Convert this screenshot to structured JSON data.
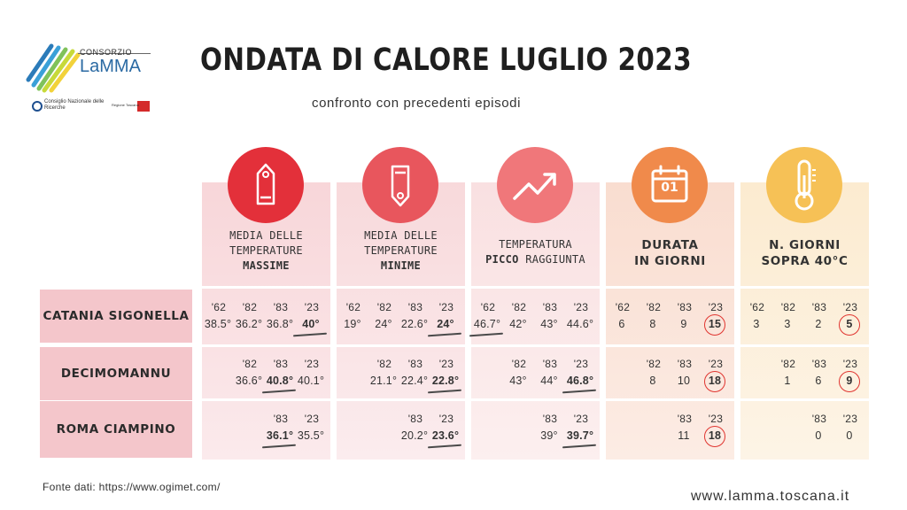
{
  "logo": {
    "consorzio": "CONSORZIO",
    "lamma": "LaMMA",
    "cnr": "Consiglio Nazionale delle Ricerche",
    "regione": "Regione Toscana"
  },
  "title": "ONDATA DI CALORE LUGLIO 2023",
  "subtitle": "confronto con precedenti episodi",
  "colors": {
    "col1": "#e3303a",
    "col2": "#e8565d",
    "col3": "#f0777a",
    "col4": "#f08a4b",
    "col5": "#f6c156",
    "label_bg": "#f4c6cb"
  },
  "columns": [
    {
      "icon": "tag-icon",
      "line1": "MEDIA DELLE",
      "line2": "TEMPERATURE",
      "line3": "MASSIME"
    },
    {
      "icon": "tag-icon",
      "line1": "MEDIA DELLE",
      "line2": "TEMPERATURE",
      "line3": "MINIME"
    },
    {
      "icon": "trend-up-icon",
      "line1": "TEMPERATURA",
      "line2a": "PICCO",
      "line2b": " RAGGIUNTA"
    },
    {
      "icon": "calendar-icon",
      "calendar_text": "01",
      "line1": "DURATA",
      "line2": "IN GIORNI"
    },
    {
      "icon": "thermometer-icon",
      "line1": "N. GIORNI",
      "line2": "SOPRA 40°C"
    }
  ],
  "rows": [
    {
      "label": "CATANIA SIGONELLA",
      "c1": {
        "years": [
          "'62",
          "'82",
          "'83",
          "'23"
        ],
        "vals": [
          "38.5°",
          "36.2°",
          "36.8°",
          "40°"
        ]
      },
      "c2": {
        "years": [
          "'62",
          "'82",
          "'83",
          "'23"
        ],
        "vals": [
          "19°",
          "24°",
          "22.6°",
          "24°"
        ]
      },
      "c3": {
        "years": [
          "'62",
          "'82",
          "'83",
          "'23"
        ],
        "vals": [
          "46.7°",
          "42°",
          "43°",
          "44.6°"
        ]
      },
      "c4": {
        "years": [
          "'62",
          "'82",
          "'83",
          "'23"
        ],
        "vals": [
          "6",
          "8",
          "9",
          "15"
        ]
      },
      "c5": {
        "years": [
          "'62",
          "'82",
          "'83",
          "'23"
        ],
        "vals": [
          "3",
          "3",
          "2",
          "5"
        ]
      }
    },
    {
      "label": "DECIMOMANNU",
      "c1": {
        "years": [
          "'82",
          "'83",
          "'23"
        ],
        "vals": [
          "36.6°",
          "40.8°",
          "40.1°"
        ]
      },
      "c2": {
        "years": [
          "'82",
          "'83",
          "'23"
        ],
        "vals": [
          "21.1°",
          "22.4°",
          "22.8°"
        ]
      },
      "c3": {
        "years": [
          "'82",
          "'83",
          "'23"
        ],
        "vals": [
          "43°",
          "44°",
          "46.8°"
        ]
      },
      "c4": {
        "years": [
          "'82",
          "'83",
          "'23"
        ],
        "vals": [
          "8",
          "10",
          "18"
        ]
      },
      "c5": {
        "years": [
          "'82",
          "'83",
          "'23"
        ],
        "vals": [
          "1",
          "6",
          "9"
        ]
      }
    },
    {
      "label": "ROMA CIAMPINO",
      "c1": {
        "years": [
          "'83",
          "'23"
        ],
        "vals": [
          "36.1°",
          "35.5°"
        ]
      },
      "c2": {
        "years": [
          "'83",
          "'23"
        ],
        "vals": [
          "20.2°",
          "23.6°"
        ]
      },
      "c3": {
        "years": [
          "'83",
          "'23"
        ],
        "vals": [
          "39°",
          "39.7°"
        ]
      },
      "c4": {
        "years": [
          "'83",
          "'23"
        ],
        "vals": [
          "11",
          "18"
        ]
      },
      "c5": {
        "years": [
          "'83",
          "'23"
        ],
        "vals": [
          "0",
          "0"
        ]
      }
    }
  ],
  "footer": {
    "source": "Fonte dati: https://www.ogimet.com/",
    "url": "www.lamma.toscana.it"
  }
}
